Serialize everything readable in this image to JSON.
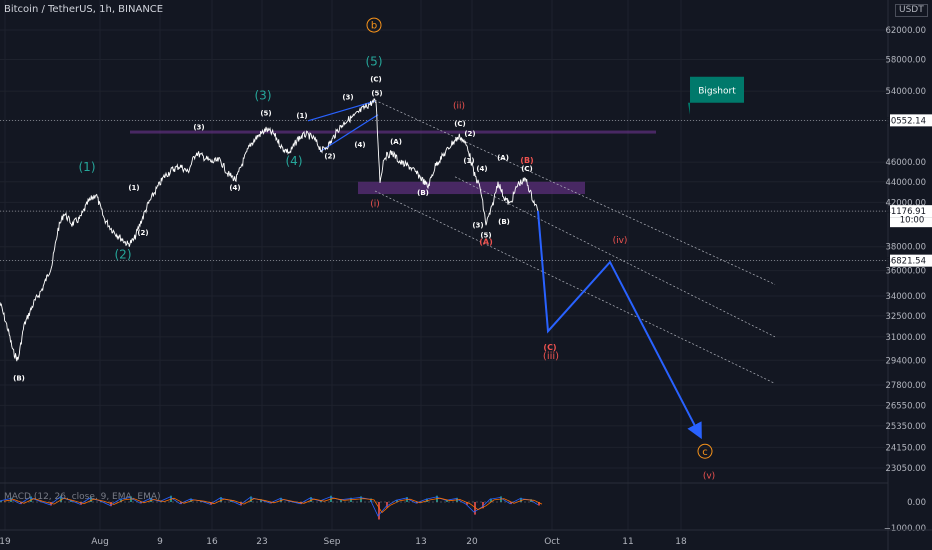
{
  "header": {
    "title": "Bitcoin / TetherUS, 1h, BINANCE",
    "currency": "USDT"
  },
  "macd_label": "MACD (12, 26, close, 9, EMA, EMA)",
  "colors": {
    "background": "#131722",
    "price": "#ffffff",
    "projection": "#2962ff",
    "zone": "#5b2f7a",
    "green_label": "#26a69a",
    "red_label": "#ef5350",
    "orange_label": "#f7931a",
    "teal_badge": "#00796b"
  },
  "chart_data": {
    "type": "line",
    "series_name": "",
    "x_ticks": [
      "19",
      "Aug",
      "9",
      "16",
      "23",
      "Sep",
      "13",
      "20",
      "Oct",
      "11",
      "18"
    ],
    "y_ticks": [
      62000,
      58000,
      54000,
      50552.14,
      46000,
      44000,
      42000,
      41176.91,
      38000,
      36821.54,
      36000,
      34000,
      32500,
      31000,
      29400,
      27800,
      26550,
      25350,
      24150,
      23050
    ],
    "y_scale": "log",
    "y_range": [
      22000,
      66000
    ],
    "price_path": [
      [
        0,
        33500
      ],
      [
        8,
        31500
      ],
      [
        13,
        30000
      ],
      [
        18,
        29400
      ],
      [
        24,
        31800
      ],
      [
        34,
        33500
      ],
      [
        42,
        34500
      ],
      [
        52,
        36500
      ],
      [
        58,
        39500
      ],
      [
        64,
        41000
      ],
      [
        72,
        40000
      ],
      [
        80,
        40500
      ],
      [
        88,
        42000
      ],
      [
        96,
        42800
      ],
      [
        104,
        40500
      ],
      [
        112,
        39500
      ],
      [
        120,
        38800
      ],
      [
        128,
        38200
      ],
      [
        134,
        38600
      ],
      [
        140,
        40000
      ],
      [
        148,
        41800
      ],
      [
        156,
        43200
      ],
      [
        164,
        44500
      ],
      [
        172,
        45200
      ],
      [
        180,
        45600
      ],
      [
        188,
        45000
      ],
      [
        196,
        47000
      ],
      [
        204,
        46500
      ],
      [
        212,
        46000
      ],
      [
        220,
        46200
      ],
      [
        228,
        44800
      ],
      [
        236,
        44200
      ],
      [
        242,
        45800
      ],
      [
        250,
        47800
      ],
      [
        258,
        48800
      ],
      [
        266,
        49500
      ],
      [
        274,
        49000
      ],
      [
        282,
        47500
      ],
      [
        290,
        47000
      ],
      [
        298,
        48500
      ],
      [
        306,
        49000
      ],
      [
        314,
        48500
      ],
      [
        322,
        47200
      ],
      [
        330,
        48000
      ],
      [
        338,
        49500
      ],
      [
        346,
        50500
      ],
      [
        354,
        51000
      ],
      [
        362,
        51800
      ],
      [
        370,
        52500
      ],
      [
        376,
        52800
      ],
      [
        380,
        44000
      ],
      [
        384,
        46500
      ],
      [
        392,
        47000
      ],
      [
        400,
        46000
      ],
      [
        410,
        45500
      ],
      [
        420,
        44500
      ],
      [
        428,
        43500
      ],
      [
        436,
        45800
      ],
      [
        444,
        46800
      ],
      [
        452,
        48000
      ],
      [
        460,
        48800
      ],
      [
        468,
        47500
      ],
      [
        474,
        44800
      ],
      [
        480,
        43500
      ],
      [
        486,
        40000
      ],
      [
        492,
        41500
      ],
      [
        498,
        44000
      ],
      [
        504,
        42500
      ],
      [
        510,
        41800
      ],
      [
        518,
        43800
      ],
      [
        526,
        44200
      ],
      [
        532,
        42500
      ],
      [
        538,
        41200
      ]
    ],
    "projection_path": [
      [
        538,
        41200
      ],
      [
        548,
        31400
      ],
      [
        610,
        36700
      ],
      [
        700,
        24800
      ]
    ],
    "horizontal_levels": [
      50552.14,
      41176.91,
      36821.54
    ],
    "price_labels": [
      {
        "text": "50552.14",
        "value": 50552.14
      },
      {
        "text": "41176.91",
        "value": 41176.91
      },
      {
        "text": "10:00",
        "value": 40400
      },
      {
        "text": "36821.54",
        "value": 36821.54
      }
    ],
    "resistance_zones": [
      {
        "x0": 130,
        "x1": 656,
        "y0": 49400,
        "y1": 49150
      },
      {
        "x0": 358,
        "x1": 585,
        "y0": 44000,
        "y1": 42800
      }
    ],
    "channel_lines": [
      [
        [
          375,
          52900
        ],
        [
          775,
          34900
        ]
      ],
      [
        [
          375,
          43100
        ],
        [
          775,
          27900
        ]
      ],
      [
        [
          455,
          44500
        ],
        [
          775,
          31000
        ]
      ]
    ],
    "wave_lines": [
      [
        [
          308,
          50500
        ],
        [
          375,
          52800
        ]
      ],
      [
        [
          320,
          47100
        ],
        [
          378,
          51200
        ]
      ]
    ],
    "wave_labels": [
      {
        "text": "(B)",
        "x": 19,
        "y": 28100,
        "color": "#ffffff",
        "size": 7
      },
      {
        "text": "(1)",
        "x": 87,
        "y": 45100,
        "color": "#26a69a",
        "size": 12
      },
      {
        "text": "(2)",
        "x": 123,
        "y": 37000,
        "color": "#26a69a",
        "size": 12
      },
      {
        "text": "(1)",
        "x": 134,
        "y": 43200,
        "color": "#ffffff",
        "size": 7
      },
      {
        "text": "(2)",
        "x": 143,
        "y": 39000,
        "color": "#ffffff",
        "size": 7
      },
      {
        "text": "(3)",
        "x": 199,
        "y": 49500,
        "color": "#ffffff",
        "size": 7
      },
      {
        "text": "(4)",
        "x": 235,
        "y": 43200,
        "color": "#ffffff",
        "size": 7
      },
      {
        "text": "(3)",
        "x": 263,
        "y": 53000,
        "color": "#26a69a",
        "size": 12
      },
      {
        "text": "(5)",
        "x": 266,
        "y": 51100,
        "color": "#ffffff",
        "size": 7
      },
      {
        "text": "(1)",
        "x": 302,
        "y": 50800,
        "color": "#ffffff",
        "size": 7
      },
      {
        "text": "(4)",
        "x": 294,
        "y": 45700,
        "color": "#26a69a",
        "size": 12
      },
      {
        "text": "(2)",
        "x": 330,
        "y": 46400,
        "color": "#ffffff",
        "size": 7
      },
      {
        "text": "(3)",
        "x": 348,
        "y": 53000,
        "color": "#ffffff",
        "size": 7
      },
      {
        "text": "(4)",
        "x": 360,
        "y": 47600,
        "color": "#ffffff",
        "size": 7
      },
      {
        "text": "b",
        "x": 374,
        "y": 62200,
        "color": "#f7931a",
        "size": 10,
        "circle": true
      },
      {
        "text": "(5)",
        "x": 374,
        "y": 57200,
        "color": "#26a69a",
        "size": 12
      },
      {
        "text": "(C)",
        "x": 376,
        "y": 55200,
        "color": "#ffffff",
        "size": 7
      },
      {
        "text": "(5)",
        "x": 377,
        "y": 53500,
        "color": "#ffffff",
        "size": 7
      },
      {
        "text": "(A)",
        "x": 396,
        "y": 47900,
        "color": "#ffffff",
        "size": 7
      },
      {
        "text": "(i)",
        "x": 375,
        "y": 41600,
        "color": "#ef5350",
        "size": 9
      },
      {
        "text": "(B)",
        "x": 423,
        "y": 42700,
        "color": "#ffffff",
        "size": 7
      },
      {
        "text": "(ii)",
        "x": 459,
        "y": 51900,
        "color": "#ef5350",
        "size": 9
      },
      {
        "text": "(C)",
        "x": 460,
        "y": 49900,
        "color": "#ffffff",
        "size": 7
      },
      {
        "text": "(2)",
        "x": 470,
        "y": 48800,
        "color": "#ffffff",
        "size": 7
      },
      {
        "text": "(1)",
        "x": 469,
        "y": 45900,
        "color": "#ffffff",
        "size": 7
      },
      {
        "text": "(4)",
        "x": 482,
        "y": 45100,
        "color": "#ffffff",
        "size": 7
      },
      {
        "text": "(3)",
        "x": 478,
        "y": 39700,
        "color": "#ffffff",
        "size": 7
      },
      {
        "text": "(5)",
        "x": 486,
        "y": 38800,
        "color": "#ffffff",
        "size": 7
      },
      {
        "text": "(A)",
        "x": 486,
        "y": 38200,
        "color": "#ef5350",
        "size": 8
      },
      {
        "text": "(A)",
        "x": 503,
        "y": 46200,
        "color": "#ffffff",
        "size": 7
      },
      {
        "text": "(B)",
        "x": 504,
        "y": 40000,
        "color": "#ffffff",
        "size": 7
      },
      {
        "text": "(B)",
        "x": 527,
        "y": 45900,
        "color": "#ef5350",
        "size": 8
      },
      {
        "text": "(C)",
        "x": 527,
        "y": 45100,
        "color": "#ffffff",
        "size": 7
      },
      {
        "text": "(iv)",
        "x": 620,
        "y": 38300,
        "color": "#ef5350",
        "size": 9
      },
      {
        "text": "(C)",
        "x": 550,
        "y": 30100,
        "color": "#ef5350",
        "size": 8
      },
      {
        "text": "(iii)",
        "x": 551,
        "y": 29500,
        "color": "#ef5350",
        "size": 10
      },
      {
        "text": "c",
        "x": 705,
        "y": 23750,
        "color": "#f7931a",
        "size": 10,
        "circle": true
      },
      {
        "text": "(v)",
        "x": 709,
        "y": 22500,
        "color": "#ef5350",
        "size": 9
      }
    ],
    "callout": {
      "text": "Bigshort",
      "x": 690,
      "y": 51200
    },
    "macd": {
      "y_ticks": [
        "0.00",
        "−1000.00"
      ],
      "amplitude_path": [
        [
          0,
          0.2
        ],
        [
          10,
          0.6
        ],
        [
          20,
          -0.3
        ],
        [
          30,
          0.8
        ],
        [
          40,
          0.1
        ],
        [
          50,
          -0.5
        ],
        [
          60,
          0.9
        ],
        [
          70,
          0.3
        ],
        [
          80,
          -0.4
        ],
        [
          90,
          0.7
        ],
        [
          100,
          0.2
        ],
        [
          110,
          -0.6
        ],
        [
          120,
          0.5
        ],
        [
          130,
          0.8
        ],
        [
          140,
          -0.2
        ],
        [
          150,
          0.6
        ],
        [
          160,
          0.1
        ],
        [
          170,
          0.9
        ],
        [
          180,
          -0.3
        ],
        [
          190,
          0.5
        ],
        [
          200,
          0.2
        ],
        [
          210,
          -0.4
        ],
        [
          220,
          0.7
        ],
        [
          230,
          0.3
        ],
        [
          240,
          -0.5
        ],
        [
          250,
          0.8
        ],
        [
          260,
          0.4
        ],
        [
          270,
          -0.2
        ],
        [
          280,
          0.6
        ],
        [
          290,
          0.1
        ],
        [
          300,
          -0.3
        ],
        [
          310,
          0.7
        ],
        [
          320,
          0.2
        ],
        [
          330,
          0.9
        ],
        [
          340,
          0.4
        ],
        [
          350,
          0.6
        ],
        [
          360,
          0.8
        ],
        [
          370,
          0.5
        ],
        [
          378,
          -2.5
        ],
        [
          386,
          -0.8
        ],
        [
          396,
          0.3
        ],
        [
          406,
          0.7
        ],
        [
          416,
          -0.2
        ],
        [
          426,
          0.5
        ],
        [
          436,
          0.9
        ],
        [
          446,
          0.3
        ],
        [
          456,
          0.6
        ],
        [
          466,
          -0.4
        ],
        [
          474,
          -1.8
        ],
        [
          482,
          -0.9
        ],
        [
          490,
          0.5
        ],
        [
          500,
          0.8
        ],
        [
          510,
          -0.3
        ],
        [
          520,
          0.6
        ],
        [
          530,
          0.4
        ],
        [
          538,
          -0.5
        ]
      ]
    }
  }
}
